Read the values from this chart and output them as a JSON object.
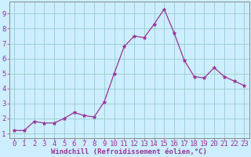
{
  "x": [
    0,
    1,
    2,
    3,
    4,
    5,
    6,
    7,
    8,
    9,
    10,
    11,
    12,
    13,
    14,
    15,
    16,
    17,
    18,
    19,
    20,
    21,
    22,
    23
  ],
  "y": [
    1.2,
    1.2,
    1.8,
    1.7,
    1.7,
    2.0,
    2.4,
    2.2,
    2.1,
    3.1,
    5.0,
    6.8,
    7.5,
    7.4,
    8.3,
    9.3,
    7.7,
    5.9,
    4.8,
    4.7,
    5.4,
    4.8,
    4.5,
    4.2
  ],
  "line_color": "#993399",
  "marker_color": "#993399",
  "bg_color": "#cceeff",
  "grid_color": "#99cccc",
  "xlabel": "Windchill (Refroidissement éolien,°C)",
  "ylabel_ticks": [
    1,
    2,
    3,
    4,
    5,
    6,
    7,
    8,
    9
  ],
  "xlim": [
    -0.5,
    23.5
  ],
  "ylim": [
    0.7,
    9.8
  ],
  "xlabel_fontsize": 6.5,
  "tick_fontsize": 6.5,
  "label_color": "#993399",
  "spine_color": "#888888"
}
